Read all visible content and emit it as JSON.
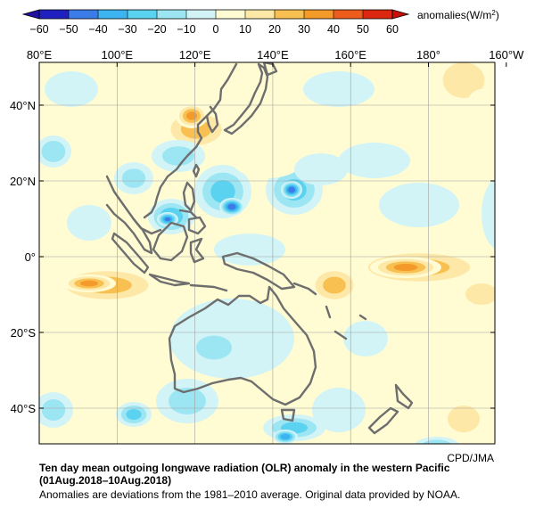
{
  "colorbar": {
    "ticks": [
      "−60",
      "−50",
      "−40",
      "−30",
      "−20",
      "−10",
      "0",
      "10",
      "20",
      "30",
      "40",
      "50",
      "60"
    ],
    "bins": [
      {
        "from": -60,
        "to": -50,
        "color": "#2020c0"
      },
      {
        "from": -50,
        "to": -40,
        "color": "#3c7ce8"
      },
      {
        "from": -40,
        "to": -30,
        "color": "#3cb4f0"
      },
      {
        "from": -30,
        "to": -20,
        "color": "#5ad2f0"
      },
      {
        "from": -20,
        "to": -10,
        "color": "#9ce6f4"
      },
      {
        "from": -10,
        "to": 0,
        "color": "#d2f4f6"
      },
      {
        "from": 0,
        "to": 10,
        "color": "#fffcd4"
      },
      {
        "from": 10,
        "to": 20,
        "color": "#fde8a8"
      },
      {
        "from": 20,
        "to": 30,
        "color": "#f8c050"
      },
      {
        "from": 30,
        "to": 40,
        "color": "#f39a2a"
      },
      {
        "from": 40,
        "to": 50,
        "color": "#ee5c1c"
      },
      {
        "from": 50,
        "to": 60,
        "color": "#dc2810"
      }
    ],
    "low_arrow_color": "#2010a0",
    "high_arrow_color": "#c81008",
    "units_label": "anomalies(W/m",
    "units_sup": "2",
    "units_close": ")"
  },
  "map": {
    "lon_labels": [
      "80°E",
      "100°E",
      "120°E",
      "140°E",
      "160°E",
      "180°",
      "160°W"
    ],
    "lat_labels": [
      "40°N",
      "20°N",
      "0°",
      "20°S",
      "40°S"
    ],
    "coast_color": "#6e6e6e",
    "grid_color": "#a0a0a0"
  },
  "credit": "CPD/JMA",
  "caption": {
    "title": "Ten day mean outgoing longwave radiation (OLR) anomaly in the western Pacific",
    "period": "(01Aug.2018–10Aug.2018)",
    "note": "Anomalies are deviations from the 1981–2010 average. Original data provided by NOAA."
  }
}
